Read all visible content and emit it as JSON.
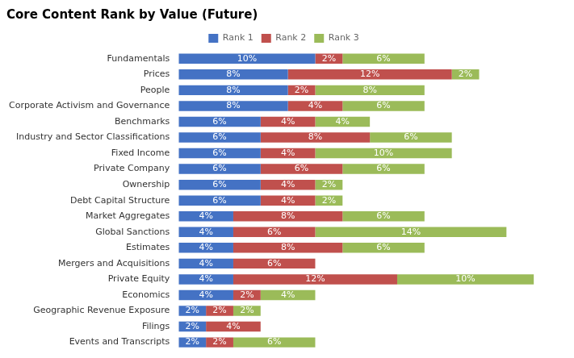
{
  "chart_data": {
    "type": "bar",
    "orientation": "horizontal",
    "stacked": true,
    "title": "Core Content Rank by Value (Future)",
    "categories": [
      "Fundamentals",
      "Prices",
      "People",
      "Corporate Activism and Governance",
      "Benchmarks",
      "Industry and Sector Classifications",
      "Fixed Income",
      "Private Company",
      "Ownership",
      "Debt Capital Structure",
      "Market Aggregates",
      "Global Sanctions",
      "Estimates",
      "Mergers and Acquisitions",
      "Private Equity",
      "Economics",
      "Geographic Revenue Exposure",
      "Filings",
      "Events and Transcripts"
    ],
    "series": [
      {
        "name": "Rank 1",
        "color": "#4472C4",
        "values": [
          10,
          8,
          8,
          8,
          6,
          6,
          6,
          6,
          6,
          6,
          4,
          4,
          4,
          4,
          4,
          4,
          2,
          2,
          2
        ],
        "value_labels": [
          "10%",
          "8%",
          "8%",
          "8%",
          "6%",
          "6%",
          "6%",
          "6%",
          "6%",
          "6%",
          "4%",
          "4%",
          "4%",
          "4%",
          "4%",
          "4%",
          "2%",
          "2%",
          "2%"
        ]
      },
      {
        "name": "Rank 2",
        "color": "#C0504D",
        "values": [
          2,
          12,
          2,
          4,
          4,
          8,
          4,
          6,
          4,
          4,
          8,
          6,
          8,
          6,
          12,
          2,
          2,
          4,
          2
        ],
        "value_labels": [
          "2%",
          "12%",
          "2%",
          "4%",
          "4%",
          "8%",
          "4%",
          "6%",
          "4%",
          "4%",
          "8%",
          "6%",
          "8%",
          "6%",
          "12%",
          "2%",
          "2%",
          "4%",
          "2%"
        ]
      },
      {
        "name": "Rank 3",
        "color": "#9BBB59",
        "values": [
          6,
          2,
          8,
          6,
          4,
          6,
          10,
          6,
          2,
          2,
          6,
          14,
          6,
          0,
          10,
          4,
          2,
          0,
          6
        ],
        "value_labels": [
          "6%",
          "2%",
          "8%",
          "6%",
          "4%",
          "6%",
          "10%",
          "6%",
          "2%",
          "2%",
          "6%",
          "14%",
          "6%",
          null,
          "10%",
          "4%",
          "2%",
          null,
          "6%"
        ]
      }
    ],
    "xlim": [
      0,
      28
    ],
    "tick_labels": "y",
    "grid": false,
    "legend": "top",
    "data_labels": true
  }
}
